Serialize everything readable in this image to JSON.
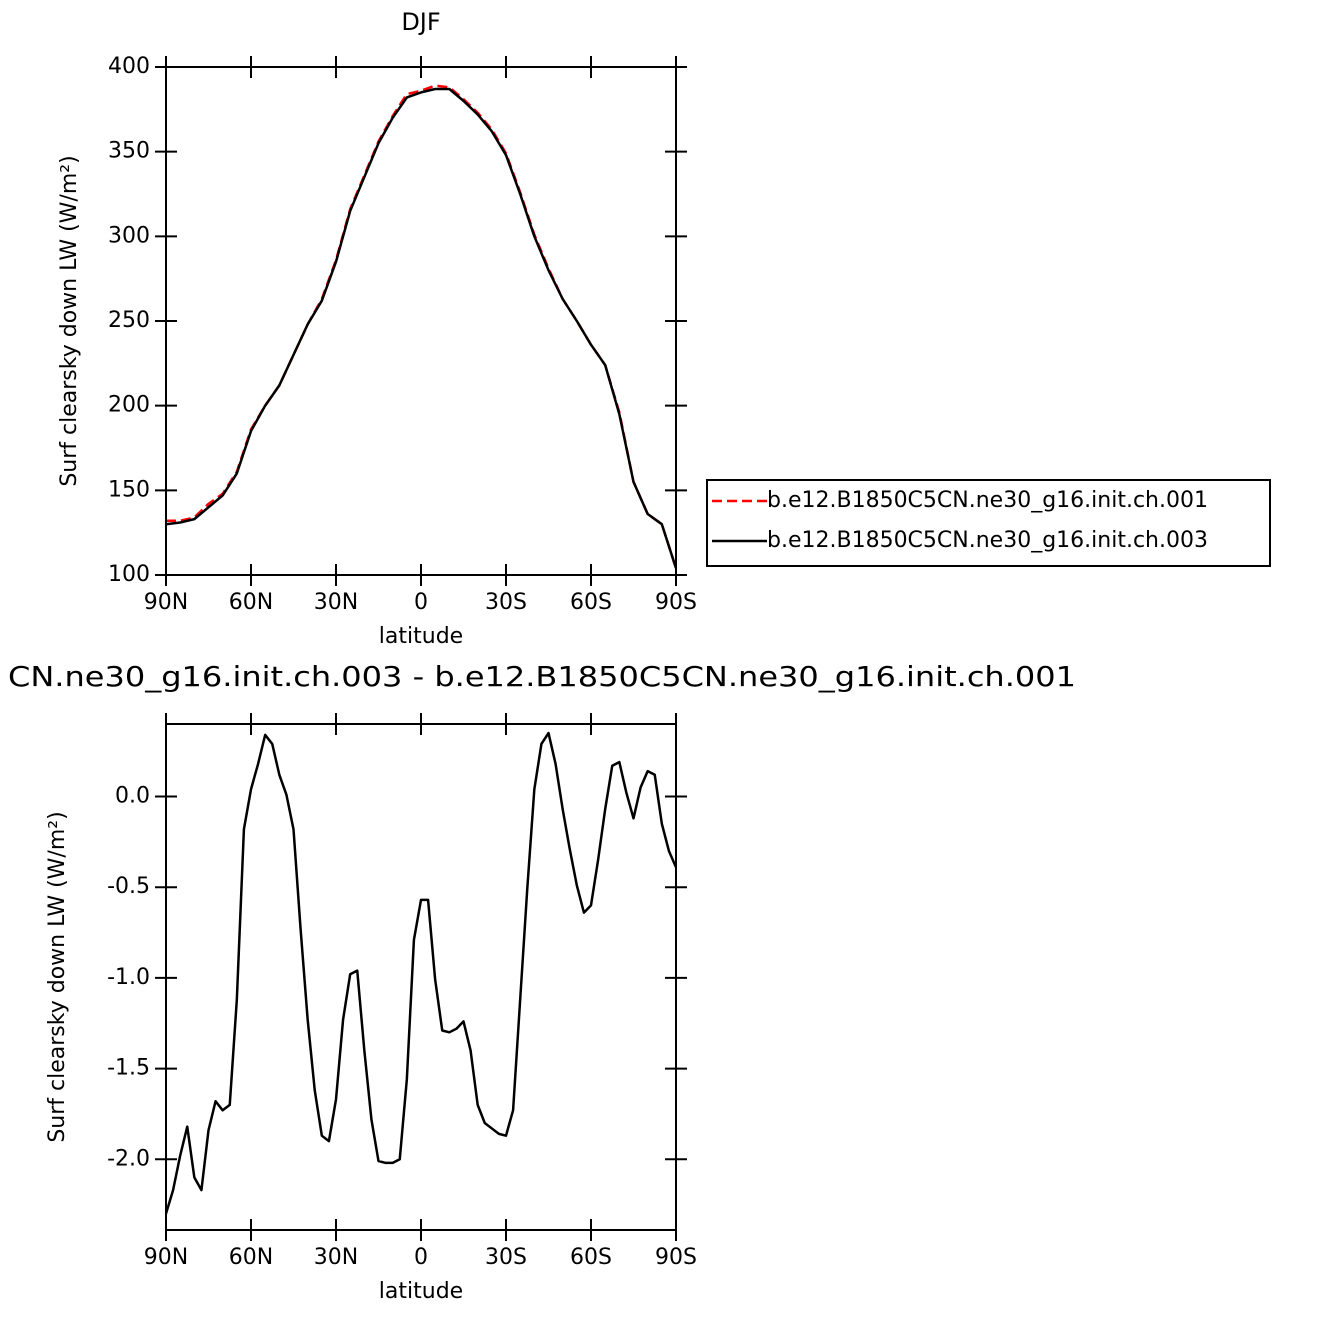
{
  "chart_data": [
    {
      "type": "line",
      "title": "DJF",
      "x": [
        90,
        85,
        80,
        75,
        70,
        65,
        60,
        55,
        50,
        45,
        40,
        35,
        30,
        25,
        20,
        15,
        10,
        5,
        0,
        -5,
        -10,
        -15,
        -20,
        -25,
        -30,
        -35,
        -40,
        -45,
        -50,
        -55,
        -60,
        -65,
        -70,
        -75,
        -80,
        -85,
        -90
      ],
      "series": [
        {
          "name": "b.e12.B1850C5CN.ne30_g16.init.ch.001",
          "color": "#ff0000",
          "line_style": "dashed",
          "values": [
            132,
            132,
            134,
            142,
            148,
            161,
            186,
            200,
            212,
            230,
            248,
            263,
            286,
            316,
            336,
            356,
            371,
            384,
            386,
            389,
            388,
            381,
            373,
            363,
            349,
            326,
            301,
            281,
            263,
            250,
            236,
            224,
            196,
            155,
            136,
            130,
            104
          ]
        },
        {
          "name": "b.e12.B1850C5CN.ne30_g16.init.ch.003",
          "color": "#000000",
          "line_style": "solid",
          "values": [
            130,
            131,
            133,
            140,
            147,
            160,
            185,
            200,
            212,
            230,
            248,
            262,
            285,
            315,
            335,
            355,
            370,
            382,
            385,
            387,
            387,
            380,
            372,
            362,
            348,
            325,
            300,
            280,
            263,
            250,
            236,
            224,
            195,
            155,
            136,
            130,
            104
          ]
        }
      ],
      "xlim": [
        90,
        -90
      ],
      "xticks": [
        {
          "value": 90,
          "label": "90N"
        },
        {
          "value": 60,
          "label": "60N"
        },
        {
          "value": 30,
          "label": "30N"
        },
        0,
        {
          "value": -30,
          "label": "30S"
        },
        {
          "value": -60,
          "label": "60S"
        },
        {
          "value": -90,
          "label": "90S"
        }
      ],
      "ylim": [
        100,
        400
      ],
      "yticks": [
        100,
        150,
        200,
        250,
        300,
        350,
        400
      ],
      "x_label": "latitude",
      "y_label": "Surf clearsky down LW (W/m²)",
      "legend": "right"
    },
    {
      "type": "line",
      "title": "CN.ne30_g16.init.ch.003 - b.e12.B1850C5CN.ne30_g16.init.ch.001",
      "x": [
        90,
        87.5,
        85,
        82.5,
        80,
        77.5,
        75,
        72.5,
        70,
        67.5,
        65,
        62.5,
        60,
        57.5,
        55,
        52.5,
        50,
        47.5,
        45,
        42.5,
        40,
        37.5,
        35,
        32.5,
        30,
        27.5,
        25,
        22.5,
        20,
        17.5,
        15,
        12.5,
        10,
        7.5,
        5,
        2.5,
        0,
        -2.5,
        -5,
        -7.5,
        -10,
        -12.5,
        -15,
        -17.5,
        -20,
        -22.5,
        -25,
        -27.5,
        -30,
        -32.5,
        -35,
        -37.5,
        -40,
        -42.5,
        -45,
        -47.5,
        -50,
        -52.5,
        -55,
        -57.5,
        -60,
        -62.5,
        -65,
        -67.5,
        -70,
        -72.5,
        -75,
        -77.5,
        -80,
        -82.5,
        -85,
        -87.5,
        -90
      ],
      "series": [
        {
          "color": "#000000",
          "line_style": "solid",
          "values": [
            -2.3,
            -2.17,
            -1.98,
            -1.82,
            -2.1,
            -2.17,
            -1.84,
            -1.68,
            -1.73,
            -1.7,
            -1.12,
            -0.18,
            0.04,
            0.18,
            0.34,
            0.29,
            0.12,
            0.01,
            -0.18,
            -0.73,
            -1.23,
            -1.62,
            -1.87,
            -1.9,
            -1.67,
            -1.23,
            -0.98,
            -0.96,
            -1.4,
            -1.78,
            -2.01,
            -2.02,
            -2.02,
            -2.0,
            -1.56,
            -0.79,
            -0.57,
            -0.57,
            -1.01,
            -1.29,
            -1.3,
            -1.28,
            -1.24,
            -1.4,
            -1.7,
            -1.8,
            -1.83,
            -1.86,
            -1.87,
            -1.73,
            -1.12,
            -0.51,
            0.04,
            0.29,
            0.35,
            0.18,
            -0.07,
            -0.29,
            -0.49,
            -0.64,
            -0.6,
            -0.35,
            -0.07,
            0.17,
            0.19,
            0.02,
            -0.12,
            0.05,
            0.14,
            0.12,
            -0.15,
            -0.3,
            -0.39
          ]
        }
      ],
      "xlim": [
        90,
        -90
      ],
      "xticks": [
        {
          "value": 90,
          "label": "90N"
        },
        {
          "value": 60,
          "label": "60N"
        },
        {
          "value": 30,
          "label": "30N"
        },
        0,
        {
          "value": -30,
          "label": "30S"
        },
        {
          "value": -60,
          "label": "60S"
        },
        {
          "value": -90,
          "label": "90S"
        }
      ],
      "ylim": [
        -2.39,
        0.4
      ],
      "yticks": [
        {
          "value": -2,
          "label": "-2.0"
        },
        -1.5,
        {
          "value": -1,
          "label": "-1.0"
        },
        -0.5,
        {
          "value": 0,
          "label": "0.0"
        }
      ],
      "x_label": "latitude",
      "y_label": "Surf clearsky down LW (W/m²)"
    }
  ]
}
